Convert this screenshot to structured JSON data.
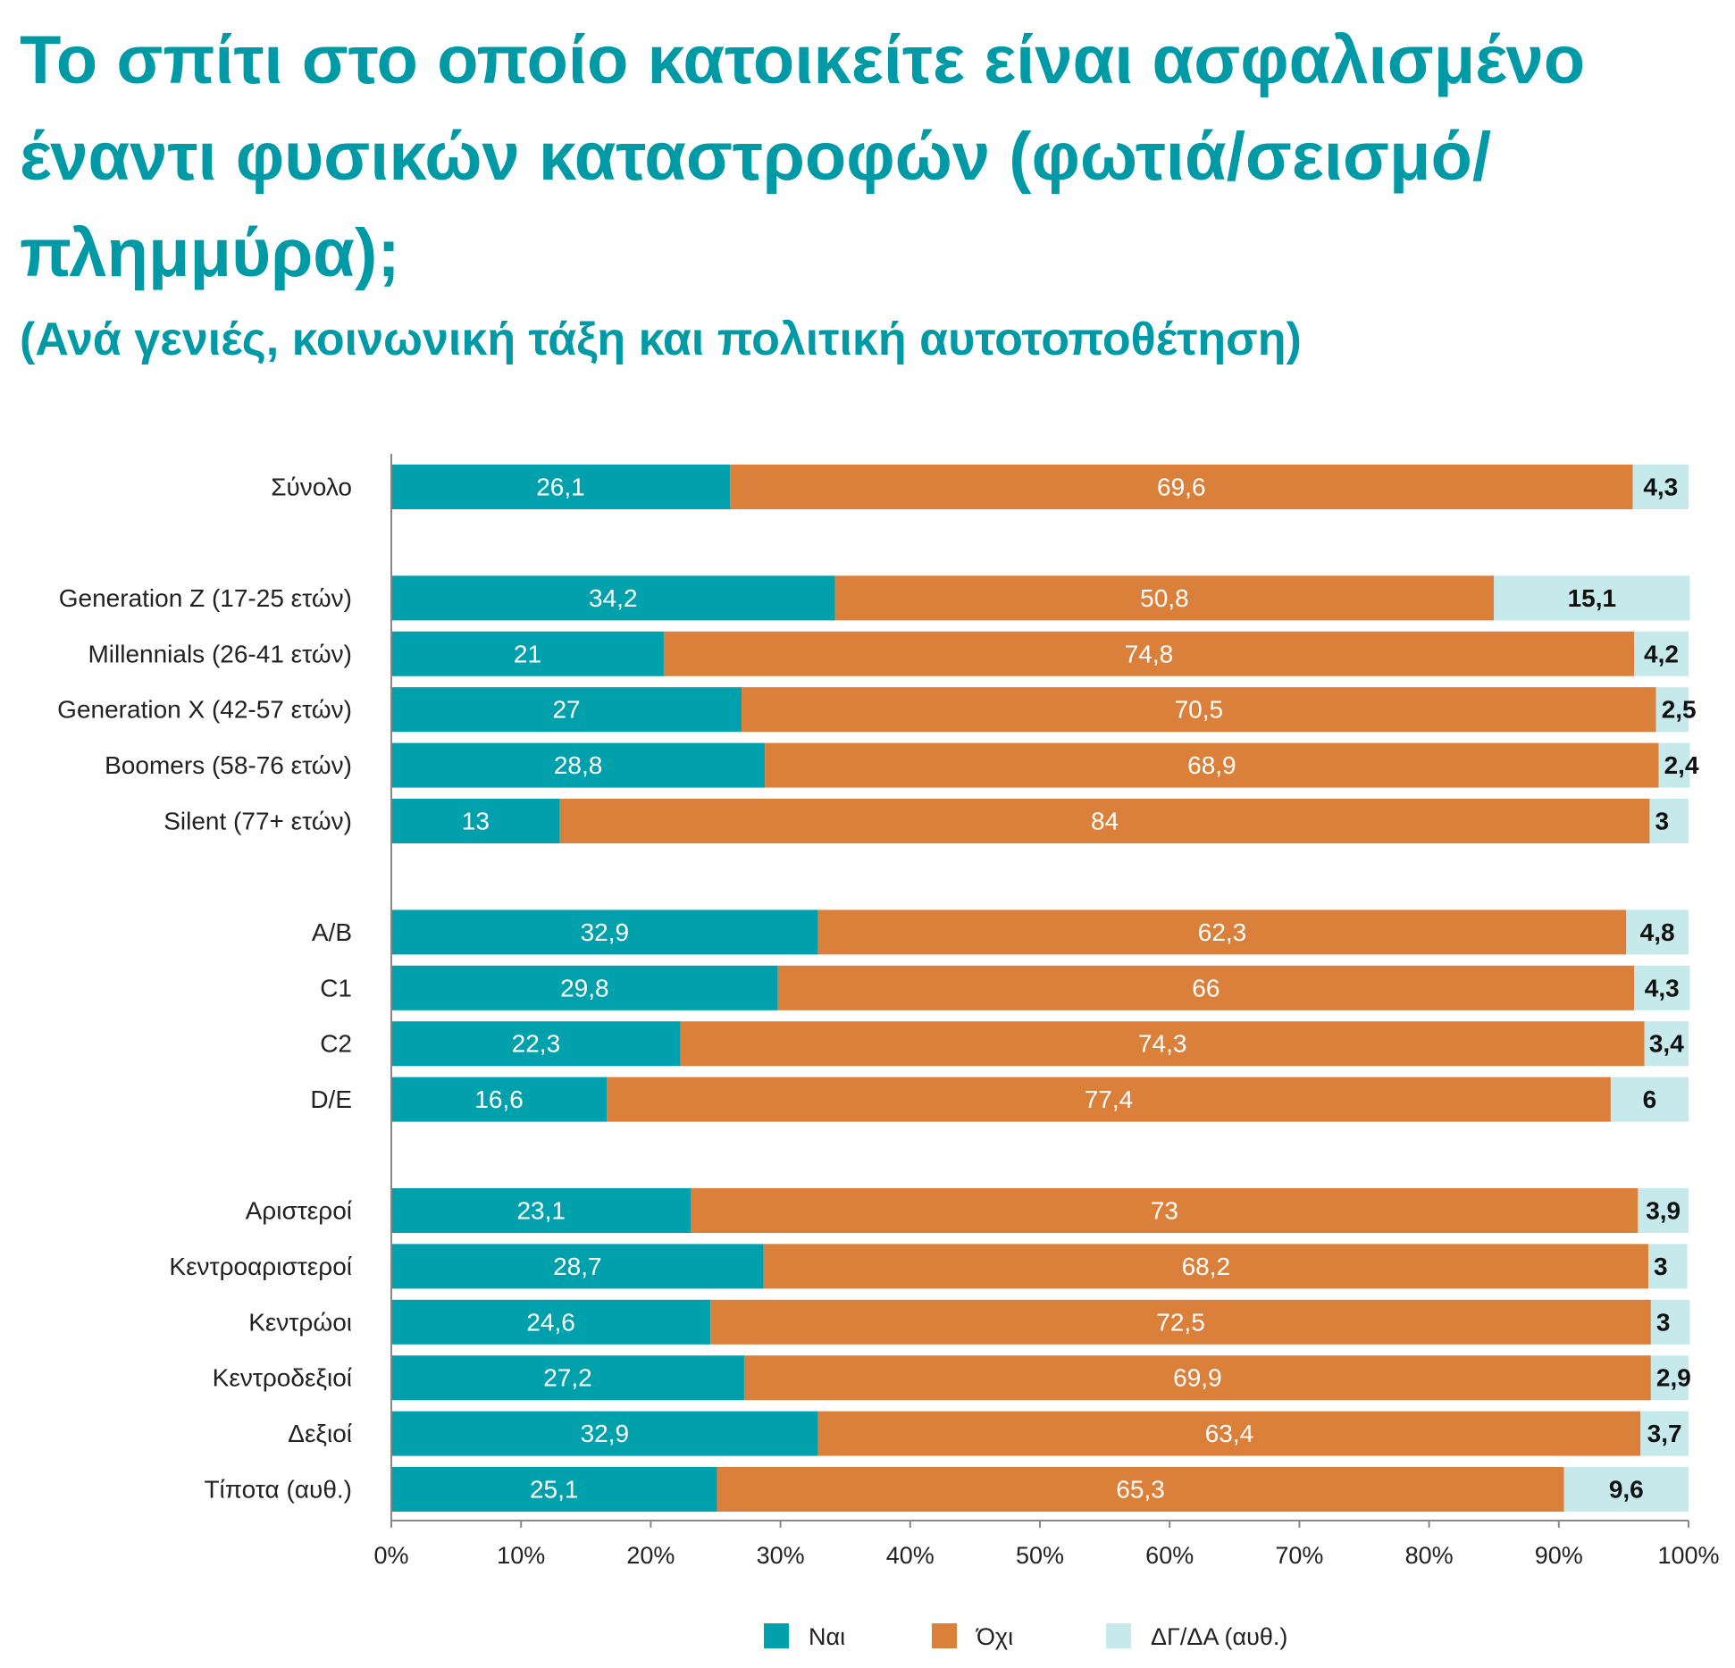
{
  "title_lines": [
    "Το σπίτι στο οποίο κατοικείτε είναι ασφαλισμένο",
    "έναντι φυσικών καταστροφών (φωτιά/σεισμό/",
    "πλημμύρα);"
  ],
  "subtitle": "(Ανά γενιές, κοινωνική τάξη και πολιτική αυτοτοποθέτηση)",
  "colors": {
    "yes": "#00a0ad",
    "no": "#db803b",
    "dk": "#c6e9eb",
    "title": "#0099a6"
  },
  "chart_data": {
    "type": "bar",
    "orientation": "horizontal",
    "stacked": true,
    "title": "Το σπίτι στο οποίο κατοικείτε είναι ασφαλισμένο έναντι φυσικών καταστροφών (φωτιά/σεισμό/πλημμύρα);",
    "subtitle": "(Ανά γενιές, κοινωνική τάξη και πολιτική αυτοτοποθέτηση)",
    "xlim": [
      0,
      100
    ],
    "x_ticks": [
      "0%",
      "10%",
      "20%",
      "30%",
      "40%",
      "50%",
      "60%",
      "70%",
      "80%",
      "90%",
      "100%"
    ],
    "grid": false,
    "legend_position": "bottom",
    "groups": [
      [
        "Σύνολο"
      ],
      [
        "Generation Z (17-25 ετών)",
        "Millennials (26-41 ετών)",
        "Generation X (42-57 ετών)",
        "Boomers (58-76 ετών)",
        "Silent (77+ ετών)"
      ],
      [
        "A/B",
        "C1",
        "C2",
        "D/E"
      ],
      [
        "Αριστεροί",
        "Κεντροαριστεροί",
        "Κεντρώοι",
        "Κεντροδεξιοί",
        "Δεξιοί",
        "Τίποτα (αυθ.)"
      ]
    ],
    "categories": [
      "Σύνολο",
      "Generation Z (17-25 ετών)",
      "Millennials (26-41 ετών)",
      "Generation X (42-57 ετών)",
      "Boomers (58-76 ετών)",
      "Silent (77+ ετών)",
      "A/B",
      "C1",
      "C2",
      "D/E",
      "Αριστεροί",
      "Κεντροαριστεροί",
      "Κεντρώοι",
      "Κεντροδεξιοί",
      "Δεξιοί",
      "Τίποτα (αυθ.)"
    ],
    "series": [
      {
        "name": "Ναι",
        "values": [
          26.1,
          34.2,
          21,
          27,
          28.8,
          13,
          32.9,
          29.8,
          22.3,
          16.6,
          23.1,
          28.7,
          24.6,
          27.2,
          32.9,
          25.1
        ],
        "labels": [
          "26,1",
          "34,2",
          "21",
          "27",
          "28,8",
          "13",
          "32,9",
          "29,8",
          "22,3",
          "16,6",
          "23,1",
          "28,7",
          "24,6",
          "27,2",
          "32,9",
          "25,1"
        ]
      },
      {
        "name": "Όχι",
        "values": [
          69.6,
          50.8,
          74.8,
          70.5,
          68.9,
          84,
          62.3,
          66,
          74.3,
          77.4,
          73,
          68.2,
          72.5,
          69.9,
          63.4,
          65.3
        ],
        "labels": [
          "69,6",
          "50,8",
          "74,8",
          "70,5",
          "68,9",
          "84",
          "62,3",
          "66",
          "74,3",
          "77,4",
          "73",
          "68,2",
          "72,5",
          "69,9",
          "63,4",
          "65,3"
        ]
      },
      {
        "name": "ΔΓ/ΔΑ (αυθ.)",
        "values": [
          4.3,
          15.1,
          4.2,
          2.5,
          2.4,
          3,
          4.8,
          4.3,
          3.4,
          6,
          3.9,
          3,
          3,
          2.9,
          3.7,
          9.6
        ],
        "labels": [
          "4,3",
          "15,1",
          "4,2",
          "2,5",
          "2,4",
          "3",
          "4,8",
          "4,3",
          "3,4",
          "6",
          "3,9",
          "3",
          "3",
          "2,9",
          "3,7",
          "9,6"
        ]
      }
    ]
  }
}
